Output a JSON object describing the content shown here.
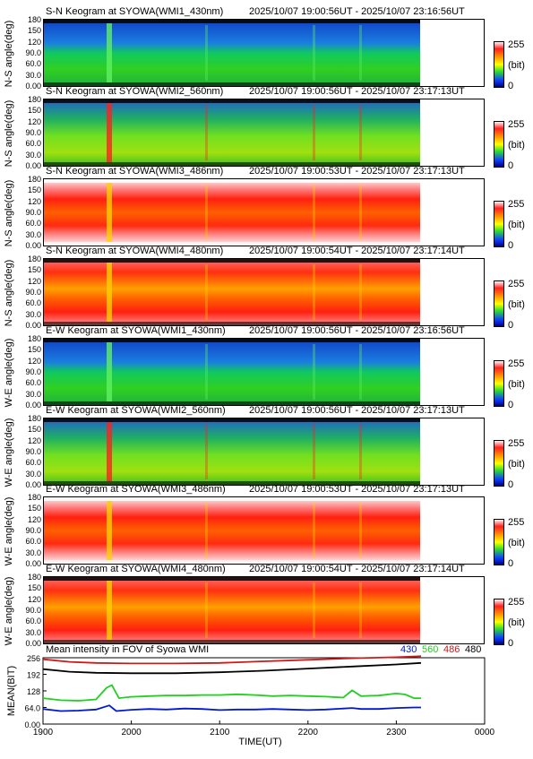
{
  "panels": [
    {
      "title": "S-N Keogram at SYOWA(WMI1_430nm)",
      "time_range": "2025/10/07 19:00:56UT - 2025/10/07 23:16:56UT",
      "ylabel": "N-S angle(deg)",
      "palette": "green"
    },
    {
      "title": "S-N Keogram at SYOWA(WMI2_560nm)",
      "time_range": "2025/10/07 19:00:56UT - 2025/10/07 23:17:13UT",
      "ylabel": "N-S angle(deg)",
      "palette": "green2"
    },
    {
      "title": "S-N Keogram at SYOWA(WMI3_486nm)",
      "time_range": "2025/10/07 19:00:53UT - 2025/10/07 23:17:13UT",
      "ylabel": "N-S angle(deg)",
      "palette": "red"
    },
    {
      "title": "S-N Keogram at SYOWA(WMI4_480nm)",
      "time_range": "2025/10/07 19:00:54UT - 2025/10/07 23:17:14UT",
      "ylabel": "N-S angle(deg)",
      "palette": "red2"
    },
    {
      "title": "E-W Keogram at SYOWA(WMI1_430nm)",
      "time_range": "2025/10/07 19:00:56UT - 2025/10/07 23:16:56UT",
      "ylabel": "W-E angle(deg)",
      "palette": "green"
    },
    {
      "title": "E-W Keogram at SYOWA(WMI2_560nm)",
      "time_range": "2025/10/07 19:00:56UT - 2025/10/07 23:17:13UT",
      "ylabel": "W-E angle(deg)",
      "palette": "green2"
    },
    {
      "title": "E-W Keogram at SYOWA(WMI3_486nm)",
      "time_range": "2025/10/07 19:00:53UT - 2025/10/07 23:17:13UT",
      "ylabel": "W-E angle(deg)",
      "palette": "red"
    },
    {
      "title": "E-W Keogram at SYOWA(WMI4_480nm)",
      "time_range": "2025/10/07 19:00:54UT - 2025/10/07 23:17:14UT",
      "ylabel": "W-E angle(deg)",
      "palette": "red2"
    }
  ],
  "keogram_yticks": [
    "180",
    "150",
    "120",
    "90.0",
    "60.0",
    "30.0",
    "0.00"
  ],
  "keogram_ylim": [
    0,
    180
  ],
  "colorbar": {
    "max_label": "255",
    "unit_label": "(bit)",
    "min_label": "0"
  },
  "chart_data": {
    "type": "line",
    "title": "Mean intensity in FOV of Syowa WMI",
    "ylabel": "MEAN(BIT)",
    "xlabel": "TIME(UT)",
    "xticks": [
      "1900",
      "2000",
      "2100",
      "2200",
      "2300",
      "0000"
    ],
    "yticks": [
      "256",
      "192",
      "128",
      "64.0",
      "0.00"
    ],
    "ylim": [
      0,
      256
    ],
    "xlim_hours": [
      19,
      24
    ],
    "grid": false,
    "legend_position": "top-right",
    "series": [
      {
        "name": "430",
        "color": "#0018d0",
        "points": [
          [
            19.0,
            58
          ],
          [
            19.2,
            50
          ],
          [
            19.4,
            52
          ],
          [
            19.6,
            56
          ],
          [
            19.75,
            72
          ],
          [
            19.83,
            50
          ],
          [
            20.0,
            55
          ],
          [
            20.2,
            58
          ],
          [
            20.4,
            56
          ],
          [
            20.6,
            60
          ],
          [
            20.8,
            58
          ],
          [
            21.0,
            54
          ],
          [
            21.2,
            56
          ],
          [
            21.4,
            56
          ],
          [
            21.6,
            58
          ],
          [
            21.8,
            56
          ],
          [
            22.0,
            54
          ],
          [
            22.2,
            56
          ],
          [
            22.4,
            60
          ],
          [
            22.5,
            62
          ],
          [
            22.6,
            58
          ],
          [
            22.8,
            58
          ],
          [
            23.0,
            62
          ],
          [
            23.2,
            64
          ],
          [
            23.28,
            64
          ]
        ]
      },
      {
        "name": "560",
        "color": "#20d020",
        "points": [
          [
            19.0,
            100
          ],
          [
            19.2,
            92
          ],
          [
            19.4,
            90
          ],
          [
            19.6,
            95
          ],
          [
            19.72,
            140
          ],
          [
            19.78,
            150
          ],
          [
            19.86,
            100
          ],
          [
            20.0,
            105
          ],
          [
            20.2,
            108
          ],
          [
            20.4,
            110
          ],
          [
            20.6,
            110
          ],
          [
            20.8,
            112
          ],
          [
            21.0,
            112
          ],
          [
            21.2,
            115
          ],
          [
            21.4,
            112
          ],
          [
            21.6,
            108
          ],
          [
            21.8,
            110
          ],
          [
            22.0,
            108
          ],
          [
            22.2,
            106
          ],
          [
            22.4,
            102
          ],
          [
            22.5,
            130
          ],
          [
            22.6,
            108
          ],
          [
            22.8,
            110
          ],
          [
            23.0,
            118
          ],
          [
            23.1,
            114
          ],
          [
            23.2,
            100
          ],
          [
            23.28,
            100
          ]
        ]
      },
      {
        "name": "486",
        "color": "#d01818",
        "points": [
          [
            19.0,
            250
          ],
          [
            19.3,
            240
          ],
          [
            19.6,
            236
          ],
          [
            20.0,
            234
          ],
          [
            20.5,
            234
          ],
          [
            21.0,
            236
          ],
          [
            21.5,
            242
          ],
          [
            22.0,
            248
          ],
          [
            22.5,
            254
          ],
          [
            23.0,
            258
          ],
          [
            23.28,
            262
          ]
        ]
      },
      {
        "name": "480",
        "color": "#000000",
        "points": [
          [
            19.0,
            212
          ],
          [
            19.3,
            202
          ],
          [
            19.6,
            198
          ],
          [
            20.0,
            196
          ],
          [
            20.5,
            196
          ],
          [
            21.0,
            200
          ],
          [
            21.5,
            206
          ],
          [
            22.0,
            214
          ],
          [
            22.5,
            222
          ],
          [
            23.0,
            230
          ],
          [
            23.28,
            236
          ]
        ]
      }
    ]
  }
}
